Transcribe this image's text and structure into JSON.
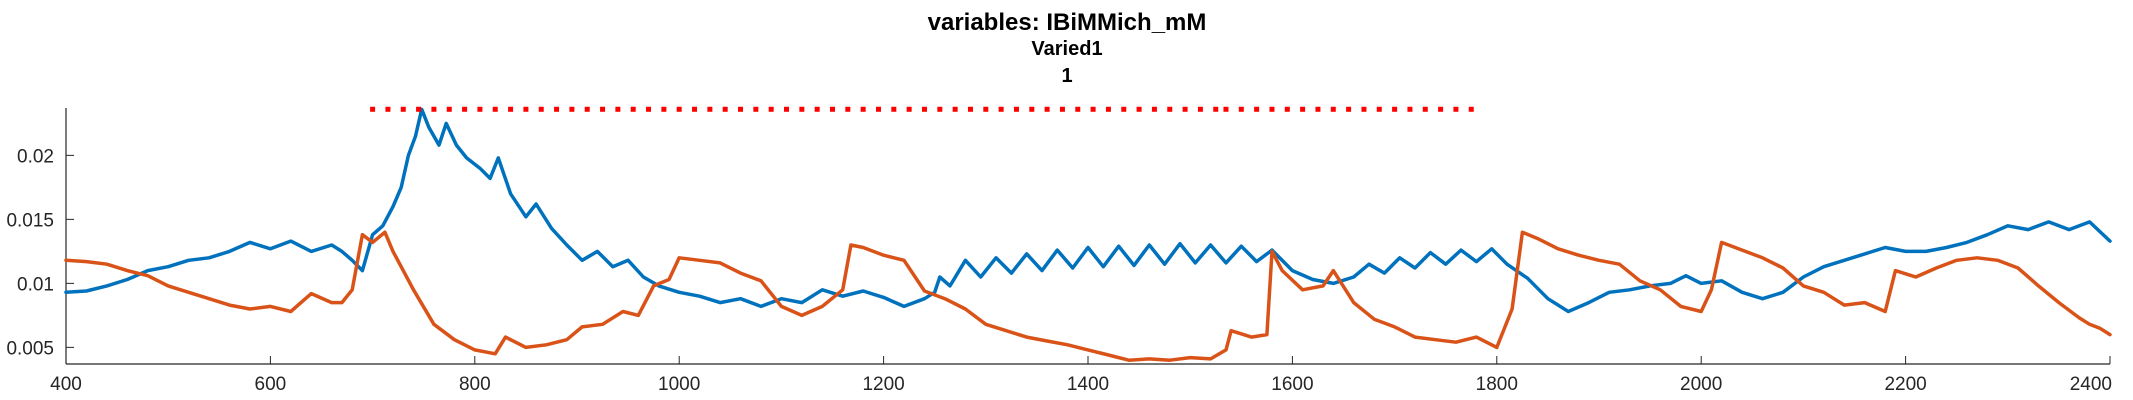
{
  "chart_data": {
    "type": "line",
    "title_lines": [
      "variables: IBiMMich_mM",
      "Varied1",
      "1"
    ],
    "xlabel": "",
    "ylabel": "",
    "xlim": [
      400,
      2400
    ],
    "ylim": [
      0.0037,
      0.0237
    ],
    "x_ticks": [
      400,
      600,
      800,
      1000,
      1200,
      1400,
      1600,
      1800,
      2000,
      2200,
      2400
    ],
    "y_ticks": [
      0.005,
      0.01,
      0.015,
      0.02
    ],
    "x_tick_labels": [
      "400",
      "600",
      "800",
      "1000",
      "1200",
      "1400",
      "1600",
      "1800",
      "2000",
      "2200",
      "2400"
    ],
    "y_tick_labels": [
      "0.005",
      "0.01",
      "0.015",
      "0.02"
    ],
    "grid": false,
    "colors": {
      "series1": "#0072BD",
      "series2": "#D95319",
      "marker": "#FF0000",
      "axis": "#262626"
    },
    "series": [
      {
        "color": "#0072BD",
        "points": [
          [
            400,
            0.0093
          ],
          [
            420,
            0.0094
          ],
          [
            440,
            0.0098
          ],
          [
            460,
            0.0103
          ],
          [
            480,
            0.011
          ],
          [
            500,
            0.0113
          ],
          [
            520,
            0.0118
          ],
          [
            540,
            0.012
          ],
          [
            560,
            0.0125
          ],
          [
            580,
            0.0132
          ],
          [
            600,
            0.0127
          ],
          [
            620,
            0.0133
          ],
          [
            640,
            0.0125
          ],
          [
            660,
            0.013
          ],
          [
            670,
            0.0125
          ],
          [
            680,
            0.0118
          ],
          [
            690,
            0.011
          ],
          [
            700,
            0.0138
          ],
          [
            710,
            0.0145
          ],
          [
            720,
            0.016
          ],
          [
            728,
            0.0175
          ],
          [
            735,
            0.02
          ],
          [
            742,
            0.0215
          ],
          [
            748,
            0.0236
          ],
          [
            755,
            0.0222
          ],
          [
            765,
            0.0208
          ],
          [
            772,
            0.0225
          ],
          [
            782,
            0.0208
          ],
          [
            792,
            0.0198
          ],
          [
            805,
            0.019
          ],
          [
            815,
            0.0182
          ],
          [
            823,
            0.0198
          ],
          [
            835,
            0.017
          ],
          [
            850,
            0.0152
          ],
          [
            860,
            0.0162
          ],
          [
            875,
            0.0143
          ],
          [
            890,
            0.013
          ],
          [
            905,
            0.0118
          ],
          [
            920,
            0.0125
          ],
          [
            935,
            0.0113
          ],
          [
            950,
            0.0118
          ],
          [
            965,
            0.0105
          ],
          [
            980,
            0.0098
          ],
          [
            1000,
            0.0093
          ],
          [
            1020,
            0.009
          ],
          [
            1040,
            0.0085
          ],
          [
            1060,
            0.0088
          ],
          [
            1080,
            0.0082
          ],
          [
            1100,
            0.0088
          ],
          [
            1120,
            0.0085
          ],
          [
            1140,
            0.0095
          ],
          [
            1160,
            0.009
          ],
          [
            1180,
            0.0094
          ],
          [
            1200,
            0.0089
          ],
          [
            1220,
            0.0082
          ],
          [
            1240,
            0.0088
          ],
          [
            1250,
            0.0093
          ],
          [
            1255,
            0.0105
          ],
          [
            1265,
            0.0098
          ],
          [
            1280,
            0.0118
          ],
          [
            1295,
            0.0105
          ],
          [
            1310,
            0.012
          ],
          [
            1325,
            0.0108
          ],
          [
            1340,
            0.0123
          ],
          [
            1355,
            0.011
          ],
          [
            1370,
            0.0126
          ],
          [
            1385,
            0.0112
          ],
          [
            1400,
            0.0128
          ],
          [
            1415,
            0.0113
          ],
          [
            1430,
            0.0129
          ],
          [
            1445,
            0.0114
          ],
          [
            1460,
            0.013
          ],
          [
            1475,
            0.0115
          ],
          [
            1490,
            0.0131
          ],
          [
            1505,
            0.0116
          ],
          [
            1520,
            0.013
          ],
          [
            1535,
            0.0116
          ],
          [
            1550,
            0.0129
          ],
          [
            1565,
            0.0117
          ],
          [
            1580,
            0.0126
          ],
          [
            1600,
            0.011
          ],
          [
            1620,
            0.0103
          ],
          [
            1640,
            0.01
          ],
          [
            1660,
            0.0105
          ],
          [
            1675,
            0.0115
          ],
          [
            1690,
            0.0108
          ],
          [
            1705,
            0.012
          ],
          [
            1720,
            0.0112
          ],
          [
            1735,
            0.0124
          ],
          [
            1750,
            0.0115
          ],
          [
            1765,
            0.0126
          ],
          [
            1780,
            0.0117
          ],
          [
            1795,
            0.0127
          ],
          [
            1810,
            0.0115
          ],
          [
            1830,
            0.0104
          ],
          [
            1850,
            0.0088
          ],
          [
            1870,
            0.0078
          ],
          [
            1890,
            0.0085
          ],
          [
            1910,
            0.0093
          ],
          [
            1930,
            0.0095
          ],
          [
            1950,
            0.0098
          ],
          [
            1970,
            0.01
          ],
          [
            1985,
            0.0106
          ],
          [
            2000,
            0.01
          ],
          [
            2020,
            0.0102
          ],
          [
            2040,
            0.0093
          ],
          [
            2060,
            0.0088
          ],
          [
            2080,
            0.0093
          ],
          [
            2100,
            0.0105
          ],
          [
            2120,
            0.0113
          ],
          [
            2140,
            0.0118
          ],
          [
            2160,
            0.0123
          ],
          [
            2180,
            0.0128
          ],
          [
            2200,
            0.0125
          ],
          [
            2220,
            0.0125
          ],
          [
            2240,
            0.0128
          ],
          [
            2260,
            0.0132
          ],
          [
            2280,
            0.0138
          ],
          [
            2300,
            0.0145
          ],
          [
            2320,
            0.0142
          ],
          [
            2340,
            0.0148
          ],
          [
            2360,
            0.0142
          ],
          [
            2380,
            0.0148
          ],
          [
            2400,
            0.0133
          ]
        ]
      },
      {
        "color": "#D95319",
        "points": [
          [
            400,
            0.0118
          ],
          [
            420,
            0.0117
          ],
          [
            440,
            0.0115
          ],
          [
            460,
            0.011
          ],
          [
            480,
            0.0106
          ],
          [
            500,
            0.0098
          ],
          [
            520,
            0.0093
          ],
          [
            540,
            0.0088
          ],
          [
            560,
            0.0083
          ],
          [
            580,
            0.008
          ],
          [
            600,
            0.0082
          ],
          [
            620,
            0.0078
          ],
          [
            640,
            0.0092
          ],
          [
            660,
            0.0085
          ],
          [
            670,
            0.0085
          ],
          [
            680,
            0.0095
          ],
          [
            690,
            0.0138
          ],
          [
            700,
            0.0132
          ],
          [
            712,
            0.014
          ],
          [
            720,
            0.0125
          ],
          [
            740,
            0.0095
          ],
          [
            760,
            0.0068
          ],
          [
            780,
            0.0056
          ],
          [
            800,
            0.0048
          ],
          [
            820,
            0.0045
          ],
          [
            830,
            0.0058
          ],
          [
            850,
            0.005
          ],
          [
            870,
            0.0052
          ],
          [
            890,
            0.0056
          ],
          [
            905,
            0.0066
          ],
          [
            925,
            0.0068
          ],
          [
            945,
            0.0078
          ],
          [
            960,
            0.0075
          ],
          [
            975,
            0.0098
          ],
          [
            990,
            0.0103
          ],
          [
            1000,
            0.012
          ],
          [
            1020,
            0.0118
          ],
          [
            1040,
            0.0116
          ],
          [
            1060,
            0.0108
          ],
          [
            1080,
            0.0102
          ],
          [
            1100,
            0.0082
          ],
          [
            1120,
            0.0075
          ],
          [
            1140,
            0.0082
          ],
          [
            1160,
            0.0095
          ],
          [
            1168,
            0.013
          ],
          [
            1180,
            0.0128
          ],
          [
            1200,
            0.0122
          ],
          [
            1220,
            0.0118
          ],
          [
            1240,
            0.0094
          ],
          [
            1260,
            0.0088
          ],
          [
            1280,
            0.008
          ],
          [
            1300,
            0.0068
          ],
          [
            1320,
            0.0063
          ],
          [
            1340,
            0.0058
          ],
          [
            1360,
            0.0055
          ],
          [
            1380,
            0.0052
          ],
          [
            1400,
            0.0048
          ],
          [
            1420,
            0.0044
          ],
          [
            1440,
            0.004
          ],
          [
            1460,
            0.0041
          ],
          [
            1480,
            0.004
          ],
          [
            1500,
            0.0042
          ],
          [
            1520,
            0.0041
          ],
          [
            1535,
            0.0048
          ],
          [
            1540,
            0.0063
          ],
          [
            1560,
            0.0058
          ],
          [
            1575,
            0.006
          ],
          [
            1580,
            0.0125
          ],
          [
            1590,
            0.011
          ],
          [
            1610,
            0.0095
          ],
          [
            1630,
            0.0098
          ],
          [
            1640,
            0.011
          ],
          [
            1660,
            0.0085
          ],
          [
            1680,
            0.0072
          ],
          [
            1700,
            0.0066
          ],
          [
            1720,
            0.0058
          ],
          [
            1740,
            0.0056
          ],
          [
            1760,
            0.0054
          ],
          [
            1780,
            0.0058
          ],
          [
            1800,
            0.005
          ],
          [
            1815,
            0.008
          ],
          [
            1825,
            0.014
          ],
          [
            1840,
            0.0135
          ],
          [
            1860,
            0.0127
          ],
          [
            1880,
            0.0122
          ],
          [
            1900,
            0.0118
          ],
          [
            1920,
            0.0115
          ],
          [
            1940,
            0.0102
          ],
          [
            1960,
            0.0095
          ],
          [
            1980,
            0.0082
          ],
          [
            2000,
            0.0078
          ],
          [
            2010,
            0.0095
          ],
          [
            2020,
            0.0132
          ],
          [
            2040,
            0.0126
          ],
          [
            2060,
            0.012
          ],
          [
            2080,
            0.0112
          ],
          [
            2100,
            0.0098
          ],
          [
            2120,
            0.0093
          ],
          [
            2140,
            0.0083
          ],
          [
            2160,
            0.0085
          ],
          [
            2180,
            0.0078
          ],
          [
            2190,
            0.011
          ],
          [
            2210,
            0.0105
          ],
          [
            2230,
            0.0112
          ],
          [
            2250,
            0.0118
          ],
          [
            2270,
            0.012
          ],
          [
            2290,
            0.0118
          ],
          [
            2310,
            0.0112
          ],
          [
            2330,
            0.0098
          ],
          [
            2350,
            0.0085
          ],
          [
            2370,
            0.0073
          ],
          [
            2380,
            0.0068
          ],
          [
            2390,
            0.0065
          ],
          [
            2400,
            0.006
          ]
        ]
      }
    ],
    "marker_series": {
      "style": "dots",
      "y": 0.0236,
      "x": [
        700,
        715,
        730,
        745,
        760,
        775,
        790,
        805,
        820,
        835,
        850,
        865,
        880,
        895,
        910,
        925,
        940,
        955,
        970,
        985,
        1000,
        1015,
        1030,
        1045,
        1060,
        1075,
        1090,
        1105,
        1120,
        1135,
        1150,
        1165,
        1180,
        1195,
        1210,
        1225,
        1240,
        1255,
        1270,
        1285,
        1300,
        1315,
        1330,
        1345,
        1360,
        1375,
        1390,
        1405,
        1420,
        1435,
        1450,
        1465,
        1480,
        1495,
        1510,
        1525,
        1535,
        1550,
        1565,
        1580,
        1595,
        1610,
        1625,
        1640,
        1655,
        1670,
        1685,
        1700,
        1715,
        1730,
        1745,
        1760,
        1775
      ]
    }
  }
}
